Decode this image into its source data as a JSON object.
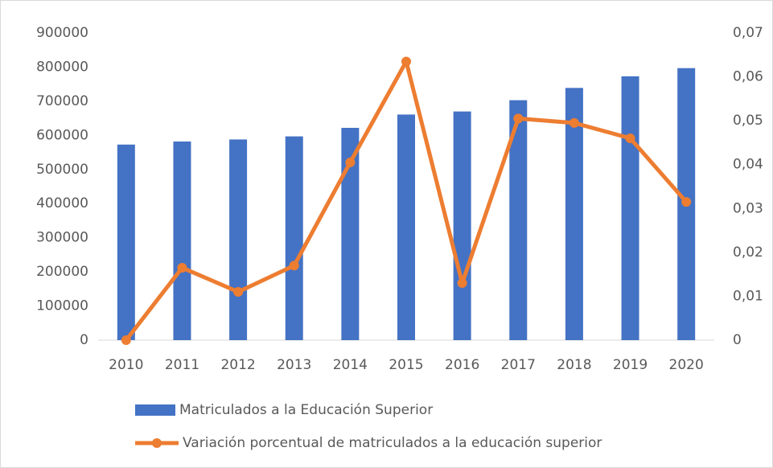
{
  "chart_data": {
    "type": "bar_line",
    "categories": [
      "2010",
      "2011",
      "2012",
      "2013",
      "2014",
      "2015",
      "2016",
      "2017",
      "2018",
      "2019",
      "2020"
    ],
    "series": [
      {
        "name": "Matriculados a la Educación Superior",
        "type": "bar",
        "color": "#4472c4",
        "values": [
          573000,
          582000,
          588000,
          597000,
          622000,
          661000,
          670000,
          703000,
          739000,
          773000,
          797000
        ]
      },
      {
        "name": "Variación porcentual de matriculados a la educación superior",
        "type": "line",
        "axis": "y2",
        "color": "#ed7d31",
        "values": [
          0,
          0.0165,
          0.011,
          0.017,
          0.0405,
          0.0635,
          0.013,
          0.0505,
          0.0495,
          0.046,
          0.0315
        ]
      }
    ],
    "ylim": [
      0,
      900000
    ],
    "yticks": [
      0,
      100000,
      200000,
      300000,
      400000,
      500000,
      600000,
      700000,
      800000,
      900000
    ],
    "y2lim": [
      0,
      0.07
    ],
    "y2ticks": [
      0,
      {
        "value": 0.01,
        "label": "0,01"
      },
      {
        "value": 0.02,
        "label": "0,02"
      },
      {
        "value": 0.03,
        "label": "0,03"
      },
      {
        "value": 0.04,
        "label": "0,04"
      },
      {
        "value": 0.05,
        "label": "0,05"
      },
      {
        "value": 0.06,
        "label": "0,06"
      },
      {
        "value": 0.07,
        "label": "0,07"
      }
    ],
    "legend": "bottom"
  }
}
